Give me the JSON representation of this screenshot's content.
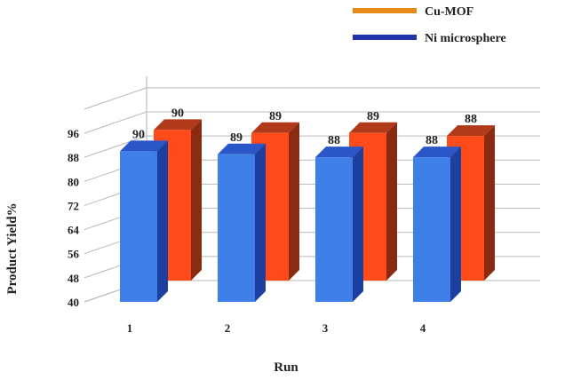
{
  "chart_data": {
    "type": "bar",
    "xlabel": "Run",
    "ylabel": "Product  Yield%",
    "categories": [
      "1",
      "2",
      "3",
      "4"
    ],
    "yticks": [
      40,
      48,
      56,
      64,
      72,
      80,
      88,
      96
    ],
    "ylim": [
      40,
      96
    ],
    "grid": true,
    "legend_position": "top-right",
    "series": [
      {
        "name": "Cu-MOF",
        "values": [
          90,
          89,
          89,
          88
        ],
        "color": "#ff4a1a",
        "side_color": "#8a2a10",
        "top_color": "#b03a1a",
        "legend_color": "#e88a1a"
      },
      {
        "name": "Ni microsphere",
        "values": [
          90,
          89,
          88,
          88
        ],
        "color": "#3f7fe8",
        "side_color": "#1c3fa0",
        "top_color": "#2b56c8",
        "legend_color": "#2233aa"
      }
    ],
    "value_labels": [
      [
        "90",
        "89",
        "89",
        "88"
      ],
      [
        "90",
        "89",
        "88",
        "88"
      ]
    ]
  }
}
